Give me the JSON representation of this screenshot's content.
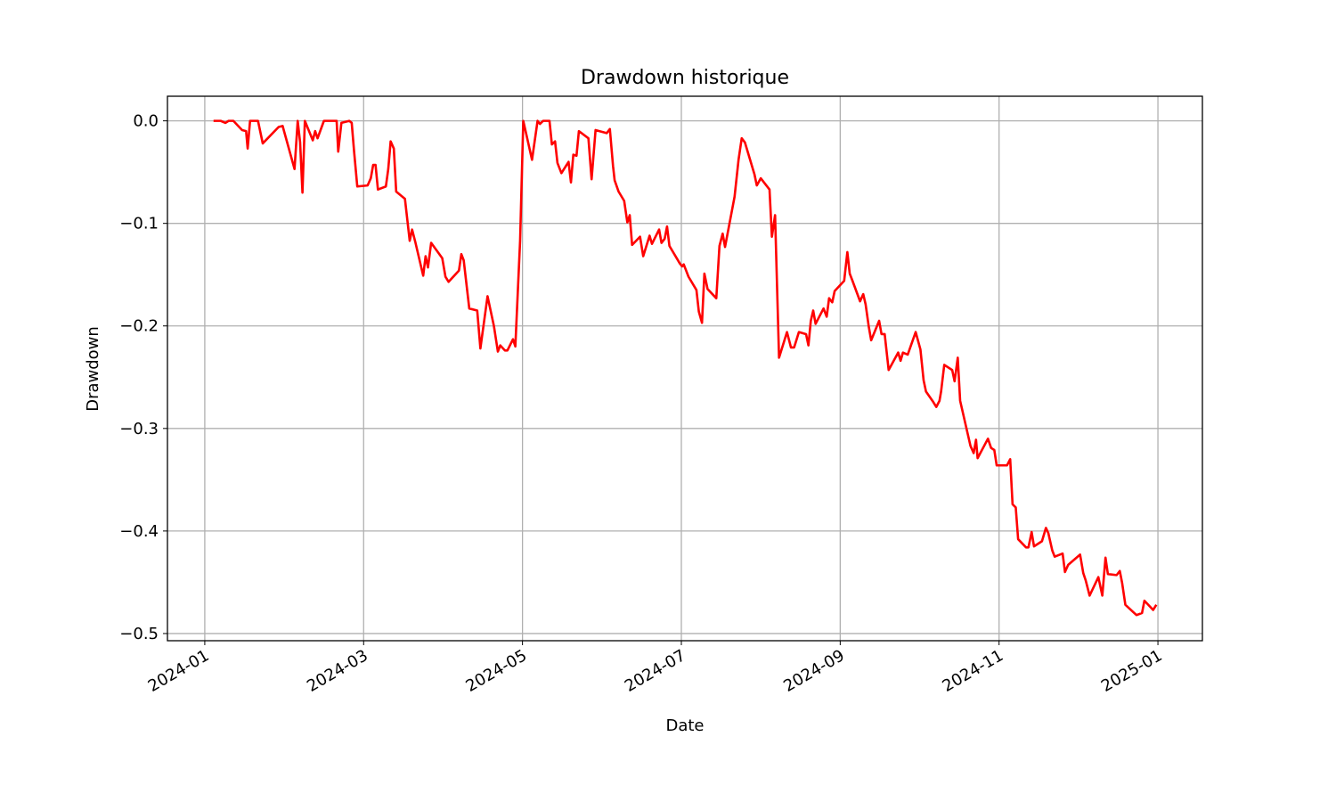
{
  "chart_data": {
    "type": "line",
    "title": "Drawdown historique",
    "x_label": "Date",
    "y_label": "Drawdown",
    "x": [
      0.11,
      0.2,
      0.26,
      0.3,
      0.36,
      0.47,
      0.52,
      0.54,
      0.57,
      0.67,
      0.73,
      0.93,
      0.98,
      1.13,
      1.17,
      1.2,
      1.23,
      1.26,
      1.36,
      1.39,
      1.42,
      1.5,
      1.66,
      1.68,
      1.72,
      1.82,
      1.85,
      1.88,
      1.92,
      2.05,
      2.09,
      2.12,
      2.15,
      2.18,
      2.28,
      2.31,
      2.34,
      2.38,
      2.41,
      2.52,
      2.58,
      2.61,
      2.65,
      2.75,
      2.78,
      2.81,
      2.85,
      2.99,
      3.03,
      3.07,
      3.2,
      3.23,
      3.26,
      3.33,
      3.43,
      3.47,
      3.56,
      3.64,
      3.69,
      3.72,
      3.78,
      3.81,
      3.88,
      3.91,
      3.97,
      4.01,
      4.12,
      4.19,
      4.22,
      4.26,
      4.34,
      4.37,
      4.41,
      4.44,
      4.49,
      4.58,
      4.61,
      4.64,
      4.68,
      4.71,
      4.83,
      4.87,
      4.92,
      5.06,
      5.1,
      5.14,
      5.16,
      5.21,
      5.28,
      5.32,
      5.35,
      5.38,
      5.48,
      5.52,
      5.6,
      5.63,
      5.72,
      5.75,
      5.79,
      5.82,
      5.85,
      5.98,
      6.01,
      6.03,
      6.09,
      6.19,
      6.22,
      6.26,
      6.29,
      6.33,
      6.44,
      6.48,
      6.52,
      6.55,
      6.67,
      6.72,
      6.76,
      6.8,
      6.92,
      6.95,
      7.0,
      7.11,
      7.14,
      7.18,
      7.23,
      7.33,
      7.38,
      7.42,
      7.48,
      7.57,
      7.6,
      7.63,
      7.66,
      7.69,
      7.79,
      7.83,
      7.86,
      7.9,
      7.93,
      8.05,
      8.09,
      8.12,
      8.15,
      8.25,
      8.29,
      8.32,
      8.36,
      8.39,
      8.49,
      8.52,
      8.56,
      8.61,
      8.73,
      8.76,
      8.79,
      8.85,
      8.95,
      9.01,
      9.05,
      9.08,
      9.17,
      9.21,
      9.25,
      9.27,
      9.31,
      9.41,
      9.44,
      9.48,
      9.51,
      9.64,
      9.68,
      9.71,
      9.73,
      9.86,
      9.9,
      9.94,
      9.97,
      10.1,
      10.14,
      10.17,
      10.21,
      10.24,
      10.34,
      10.37,
      10.41,
      10.44,
      10.54,
      10.59,
      10.62,
      10.67,
      10.7,
      10.8,
      10.83,
      10.87,
      11.02,
      11.06,
      11.09,
      11.14,
      11.25,
      11.3,
      11.34,
      11.37,
      11.48,
      11.52,
      11.55,
      11.59,
      11.73,
      11.8,
      11.83,
      11.94,
      11.98
    ],
    "series": [
      {
        "name": "Drawdown",
        "color": "#ff0000",
        "values": [
          0,
          0,
          -0.002,
          0,
          0,
          -0.009,
          -0.01,
          -0.027,
          0,
          0,
          -0.022,
          -0.006,
          -0.005,
          -0.047,
          0,
          -0.021,
          -0.07,
          0,
          -0.019,
          -0.01,
          -0.017,
          0,
          0,
          -0.03,
          -0.002,
          0,
          -0.002,
          -0.03,
          -0.064,
          -0.063,
          -0.056,
          -0.043,
          -0.043,
          -0.067,
          -0.064,
          -0.047,
          -0.02,
          -0.027,
          -0.069,
          -0.076,
          -0.117,
          -0.106,
          -0.118,
          -0.151,
          -0.132,
          -0.143,
          -0.119,
          -0.134,
          -0.152,
          -0.157,
          -0.146,
          -0.13,
          -0.136,
          -0.183,
          -0.185,
          -0.222,
          -0.171,
          -0.2,
          -0.225,
          -0.219,
          -0.224,
          -0.224,
          -0.213,
          -0.22,
          -0.117,
          0,
          -0.038,
          0,
          -0.003,
          0,
          0,
          -0.023,
          -0.02,
          -0.041,
          -0.051,
          -0.04,
          -0.06,
          -0.033,
          -0.034,
          -0.01,
          -0.017,
          -0.057,
          -0.009,
          -0.012,
          -0.008,
          -0.044,
          -0.058,
          -0.069,
          -0.078,
          -0.099,
          -0.092,
          -0.121,
          -0.113,
          -0.132,
          -0.112,
          -0.12,
          -0.106,
          -0.119,
          -0.115,
          -0.103,
          -0.122,
          -0.139,
          -0.142,
          -0.14,
          -0.152,
          -0.165,
          -0.186,
          -0.197,
          -0.149,
          -0.164,
          -0.173,
          -0.122,
          -0.11,
          -0.123,
          -0.074,
          -0.038,
          -0.017,
          -0.021,
          -0.052,
          -0.063,
          -0.056,
          -0.067,
          -0.113,
          -0.092,
          -0.231,
          -0.206,
          -0.221,
          -0.221,
          -0.206,
          -0.208,
          -0.219,
          -0.195,
          -0.185,
          -0.198,
          -0.183,
          -0.191,
          -0.173,
          -0.177,
          -0.166,
          -0.156,
          -0.128,
          -0.149,
          -0.155,
          -0.176,
          -0.169,
          -0.179,
          -0.201,
          -0.214,
          -0.195,
          -0.208,
          -0.208,
          -0.243,
          -0.226,
          -0.234,
          -0.226,
          -0.228,
          -0.206,
          -0.223,
          -0.253,
          -0.264,
          -0.274,
          -0.279,
          -0.273,
          -0.264,
          -0.238,
          -0.243,
          -0.254,
          -0.231,
          -0.273,
          -0.317,
          -0.324,
          -0.311,
          -0.329,
          -0.31,
          -0.319,
          -0.321,
          -0.336,
          -0.336,
          -0.33,
          -0.374,
          -0.377,
          -0.408,
          -0.416,
          -0.416,
          -0.401,
          -0.415,
          -0.41,
          -0.397,
          -0.402,
          -0.419,
          -0.425,
          -0.422,
          -0.44,
          -0.433,
          -0.423,
          -0.441,
          -0.448,
          -0.463,
          -0.445,
          -0.463,
          -0.426,
          -0.442,
          -0.443,
          -0.439,
          -0.451,
          -0.472,
          -0.482,
          -0.48,
          -0.468,
          -0.477,
          -0.472
        ]
      }
    ],
    "xlim": [
      -0.47,
      12.56
    ],
    "xticks": [
      {
        "value": 0,
        "label": "2024-01"
      },
      {
        "value": 2,
        "label": "2024-03"
      },
      {
        "value": 4,
        "label": "2024-05"
      },
      {
        "value": 6,
        "label": "2024-07"
      },
      {
        "value": 8,
        "label": "2024-09"
      },
      {
        "value": 10,
        "label": "2024-11"
      },
      {
        "value": 12,
        "label": "2025-01"
      }
    ],
    "ylim": [
      -0.507,
      0.024
    ],
    "yticks": [
      {
        "value": -0.5,
        "label": "−0.5"
      },
      {
        "value": -0.4,
        "label": "−0.4"
      },
      {
        "value": -0.3,
        "label": "−0.3"
      },
      {
        "value": -0.2,
        "label": "−0.2"
      },
      {
        "value": -0.1,
        "label": "−0.1"
      },
      {
        "value": 0,
        "label": "0.0"
      }
    ],
    "grid": true
  }
}
